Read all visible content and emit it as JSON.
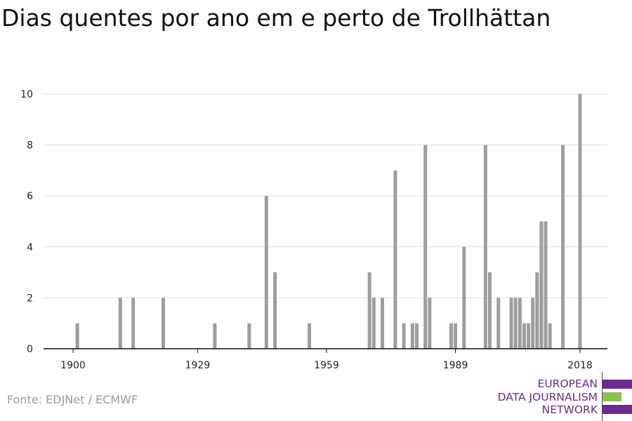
{
  "title": "Dias quentes por ano em e perto de Trollhättan",
  "source": "Fonte: EDJNet / ECMWF",
  "logo": {
    "line1": "EUROPEAN",
    "line2": "DATA JOURNALISM",
    "line3": "NETWORK",
    "color_purple": "#6a2a8f",
    "color_green": "#8bc34a"
  },
  "colors": {
    "bar": "#9e9e9e",
    "grid": "#dddddd",
    "axis": "#111111"
  },
  "chart_data": {
    "type": "bar",
    "title": "Dias quentes por ano em e perto de Trollhättan",
    "xlabel": "",
    "ylabel": "",
    "xlim": [
      1900,
      2018
    ],
    "ylim": [
      0,
      10
    ],
    "x_ticks": [
      1900,
      1929,
      1959,
      1989,
      2018
    ],
    "y_ticks": [
      0,
      2,
      4,
      6,
      8,
      10
    ],
    "grid": true,
    "x": [
      1901,
      1911,
      1914,
      1921,
      1933,
      1941,
      1945,
      1947,
      1955,
      1969,
      1970,
      1972,
      1975,
      1977,
      1979,
      1980,
      1982,
      1983,
      1988,
      1989,
      1991,
      1996,
      1997,
      1999,
      2002,
      2003,
      2004,
      2005,
      2006,
      2007,
      2008,
      2009,
      2010,
      2011,
      2014,
      2018
    ],
    "values": [
      1,
      2,
      2,
      2,
      1,
      1,
      6,
      3,
      1,
      3,
      2,
      2,
      7,
      1,
      1,
      1,
      8,
      2,
      1,
      1,
      4,
      8,
      3,
      2,
      2,
      2,
      2,
      1,
      1,
      2,
      3,
      5,
      5,
      1,
      8,
      10
    ]
  }
}
